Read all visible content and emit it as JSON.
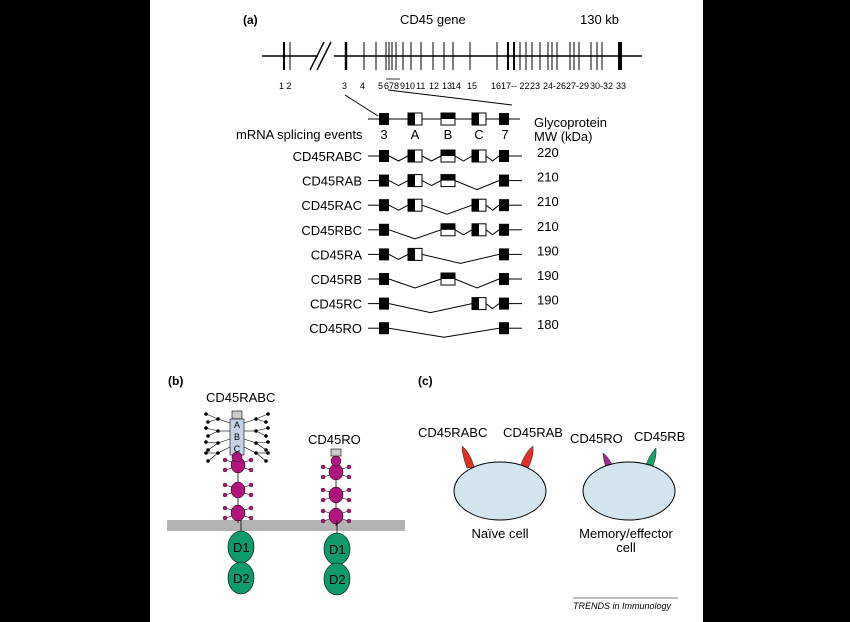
{
  "panel_a": {
    "label": "(a)",
    "gene_title": "CD45 gene",
    "gene_size": "130 kb",
    "exon_numbers": [
      "1 2",
      "3",
      "4",
      "5",
      "6",
      "7",
      "8",
      "9",
      "10",
      "11",
      "12",
      "13",
      "14",
      "15",
      "16",
      "17-- 22",
      "23",
      "24-26",
      "27-29",
      "30-32",
      "33"
    ],
    "splicing_header": "mRNA splicing events",
    "exon_headers": [
      "3",
      "A",
      "B",
      "C",
      "7"
    ],
    "mw_header_line1": "Glycoprotein",
    "mw_header_line2": "MW (kDa)",
    "isoforms": [
      {
        "name": "CD45RABC",
        "mw": "220",
        "A": true,
        "B": true,
        "C": true
      },
      {
        "name": "CD45RAB",
        "mw": "210",
        "A": true,
        "B": true,
        "C": false
      },
      {
        "name": "CD45RAC",
        "mw": "210",
        "A": true,
        "B": false,
        "C": true
      },
      {
        "name": "CD45RBC",
        "mw": "210",
        "A": false,
        "B": true,
        "C": true
      },
      {
        "name": "CD45RA",
        "mw": "190",
        "A": true,
        "B": false,
        "C": false
      },
      {
        "name": "CD45RB",
        "mw": "190",
        "A": false,
        "B": true,
        "C": false
      },
      {
        "name": "CD45RC",
        "mw": "190",
        "A": false,
        "B": false,
        "C": true
      },
      {
        "name": "CD45RO",
        "mw": "180",
        "A": false,
        "B": false,
        "C": false
      }
    ]
  },
  "panel_b": {
    "label": "(b)",
    "molecule1": "CD45RABC",
    "molecule2": "CD45RO",
    "domain1": "D1",
    "domain2": "D2",
    "exon_letters": [
      "A",
      "B",
      "C"
    ]
  },
  "panel_c": {
    "label": "(c)",
    "naive_isoform1": "CD45RABC",
    "naive_isoform2": "CD45RAB",
    "memory_isoform1": "CD45RO",
    "memory_isoform2": "CD45RB",
    "naive_cell": "Naïve cell",
    "memory_cell_line1": "Memory/effector",
    "memory_cell_line2": "cell"
  },
  "credit": "TRENDS in Immunology",
  "colors": {
    "mucin_purple": "#b0157f",
    "domain_green": "#0f9a6a",
    "membrane_gray": "#b3b3b3",
    "cell_fill": "#d3e6ef",
    "red_isoform": "#e03028",
    "purple_isoform": "#9b2e8d",
    "green_isoform": "#1aa06a",
    "exon_box_fill": "#c5d3e8"
  }
}
